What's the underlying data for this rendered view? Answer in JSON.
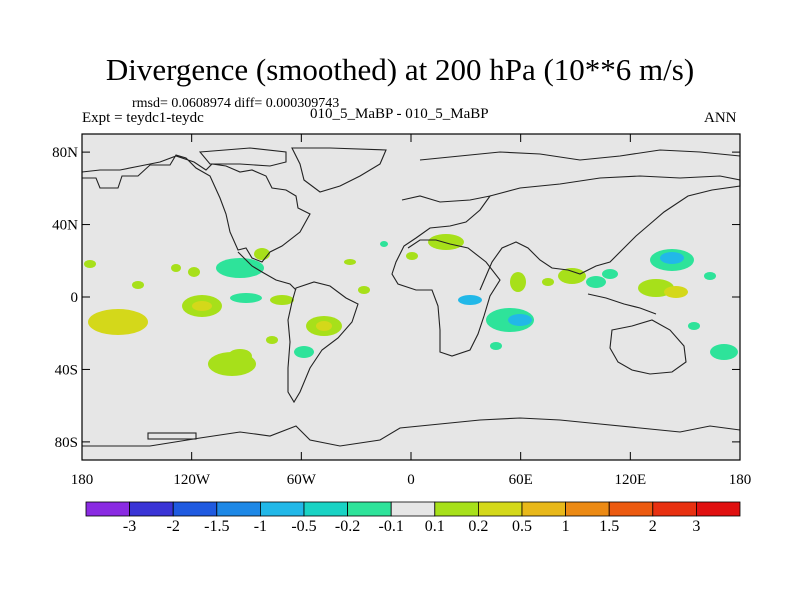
{
  "title": "Divergence (smoothed) at 200 hPa (10**6 m/s)",
  "stats": "rmsd= 0.0608974 diff= 0.000309743",
  "expt": "Expt = teydc1-teydc",
  "cases": "010_5_MaBP - 010_5_MaBP",
  "season": "ANN",
  "axes": {
    "x_ticks": [
      "180",
      "120W",
      "60W",
      "0",
      "60E",
      "120E",
      "180"
    ],
    "y_ticks": [
      "80N",
      "40N",
      "0",
      "40S",
      "80S"
    ]
  },
  "colorbar": {
    "levels": [
      "-3",
      "-2",
      "-1.5",
      "-1",
      "-0.5",
      "-0.2",
      "-0.1",
      "0.1",
      "0.2",
      "0.5",
      "1",
      "1.5",
      "2",
      "3"
    ],
    "colors": [
      "#8a2be2",
      "#3a34d6",
      "#1f5ae0",
      "#1e88e6",
      "#22b8e8",
      "#19d3c4",
      "#2ee39a",
      "#e6e6e6",
      "#a7e01a",
      "#d4d81a",
      "#e8b81a",
      "#ec8a14",
      "#ec5a10",
      "#e83010",
      "#e01010"
    ]
  },
  "map_fill": "#e6e6e6",
  "blob_colors": {
    "lime": "#a7e01a",
    "olive": "#d4d81a",
    "green": "#2ee39a",
    "cyan": "#22b8e8"
  }
}
